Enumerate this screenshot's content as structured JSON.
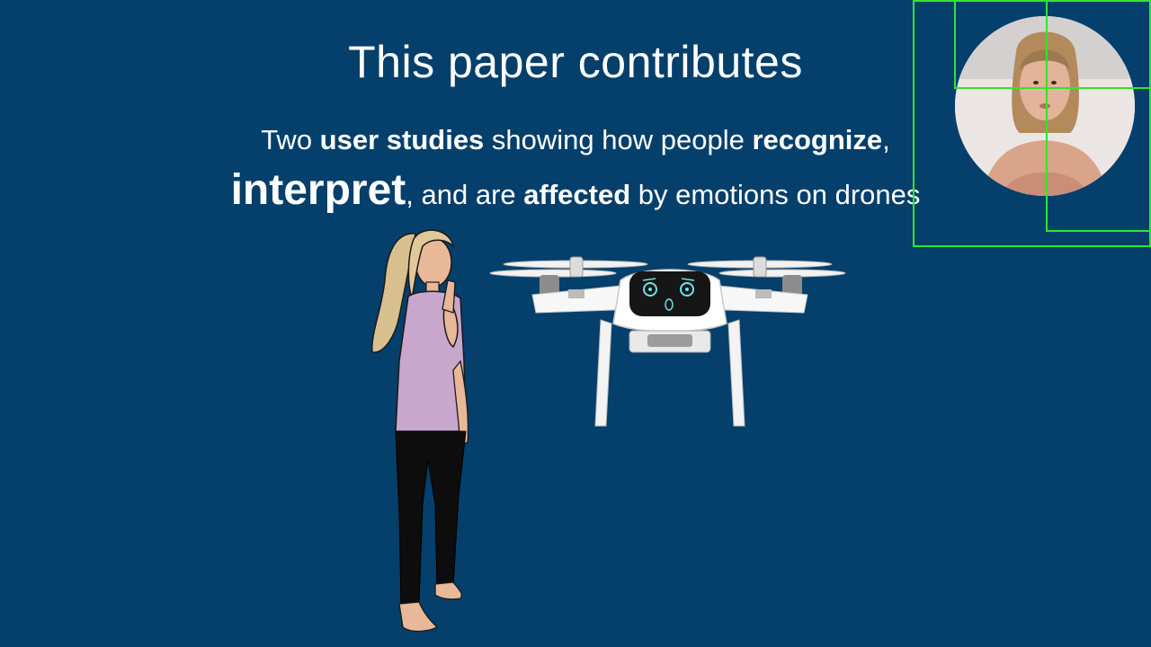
{
  "slide": {
    "title": "This paper contributes",
    "line1": {
      "t1": "Two ",
      "b1": "user studies",
      "t2": " showing how people ",
      "b2": "recognize",
      "t3": ","
    },
    "line2": {
      "big": "interpret",
      "t1": ", and are ",
      "b1": "affected",
      "t2": " by emotions on drones"
    }
  },
  "colors": {
    "background": "#053f6b",
    "text": "#ffffff",
    "detection_box": "#2ee62e"
  },
  "illustrations": {
    "person": "woman-thinking-cartoon",
    "drone": "quadcopter-with-face-display",
    "webcam": "presenter-webcam-feed"
  }
}
